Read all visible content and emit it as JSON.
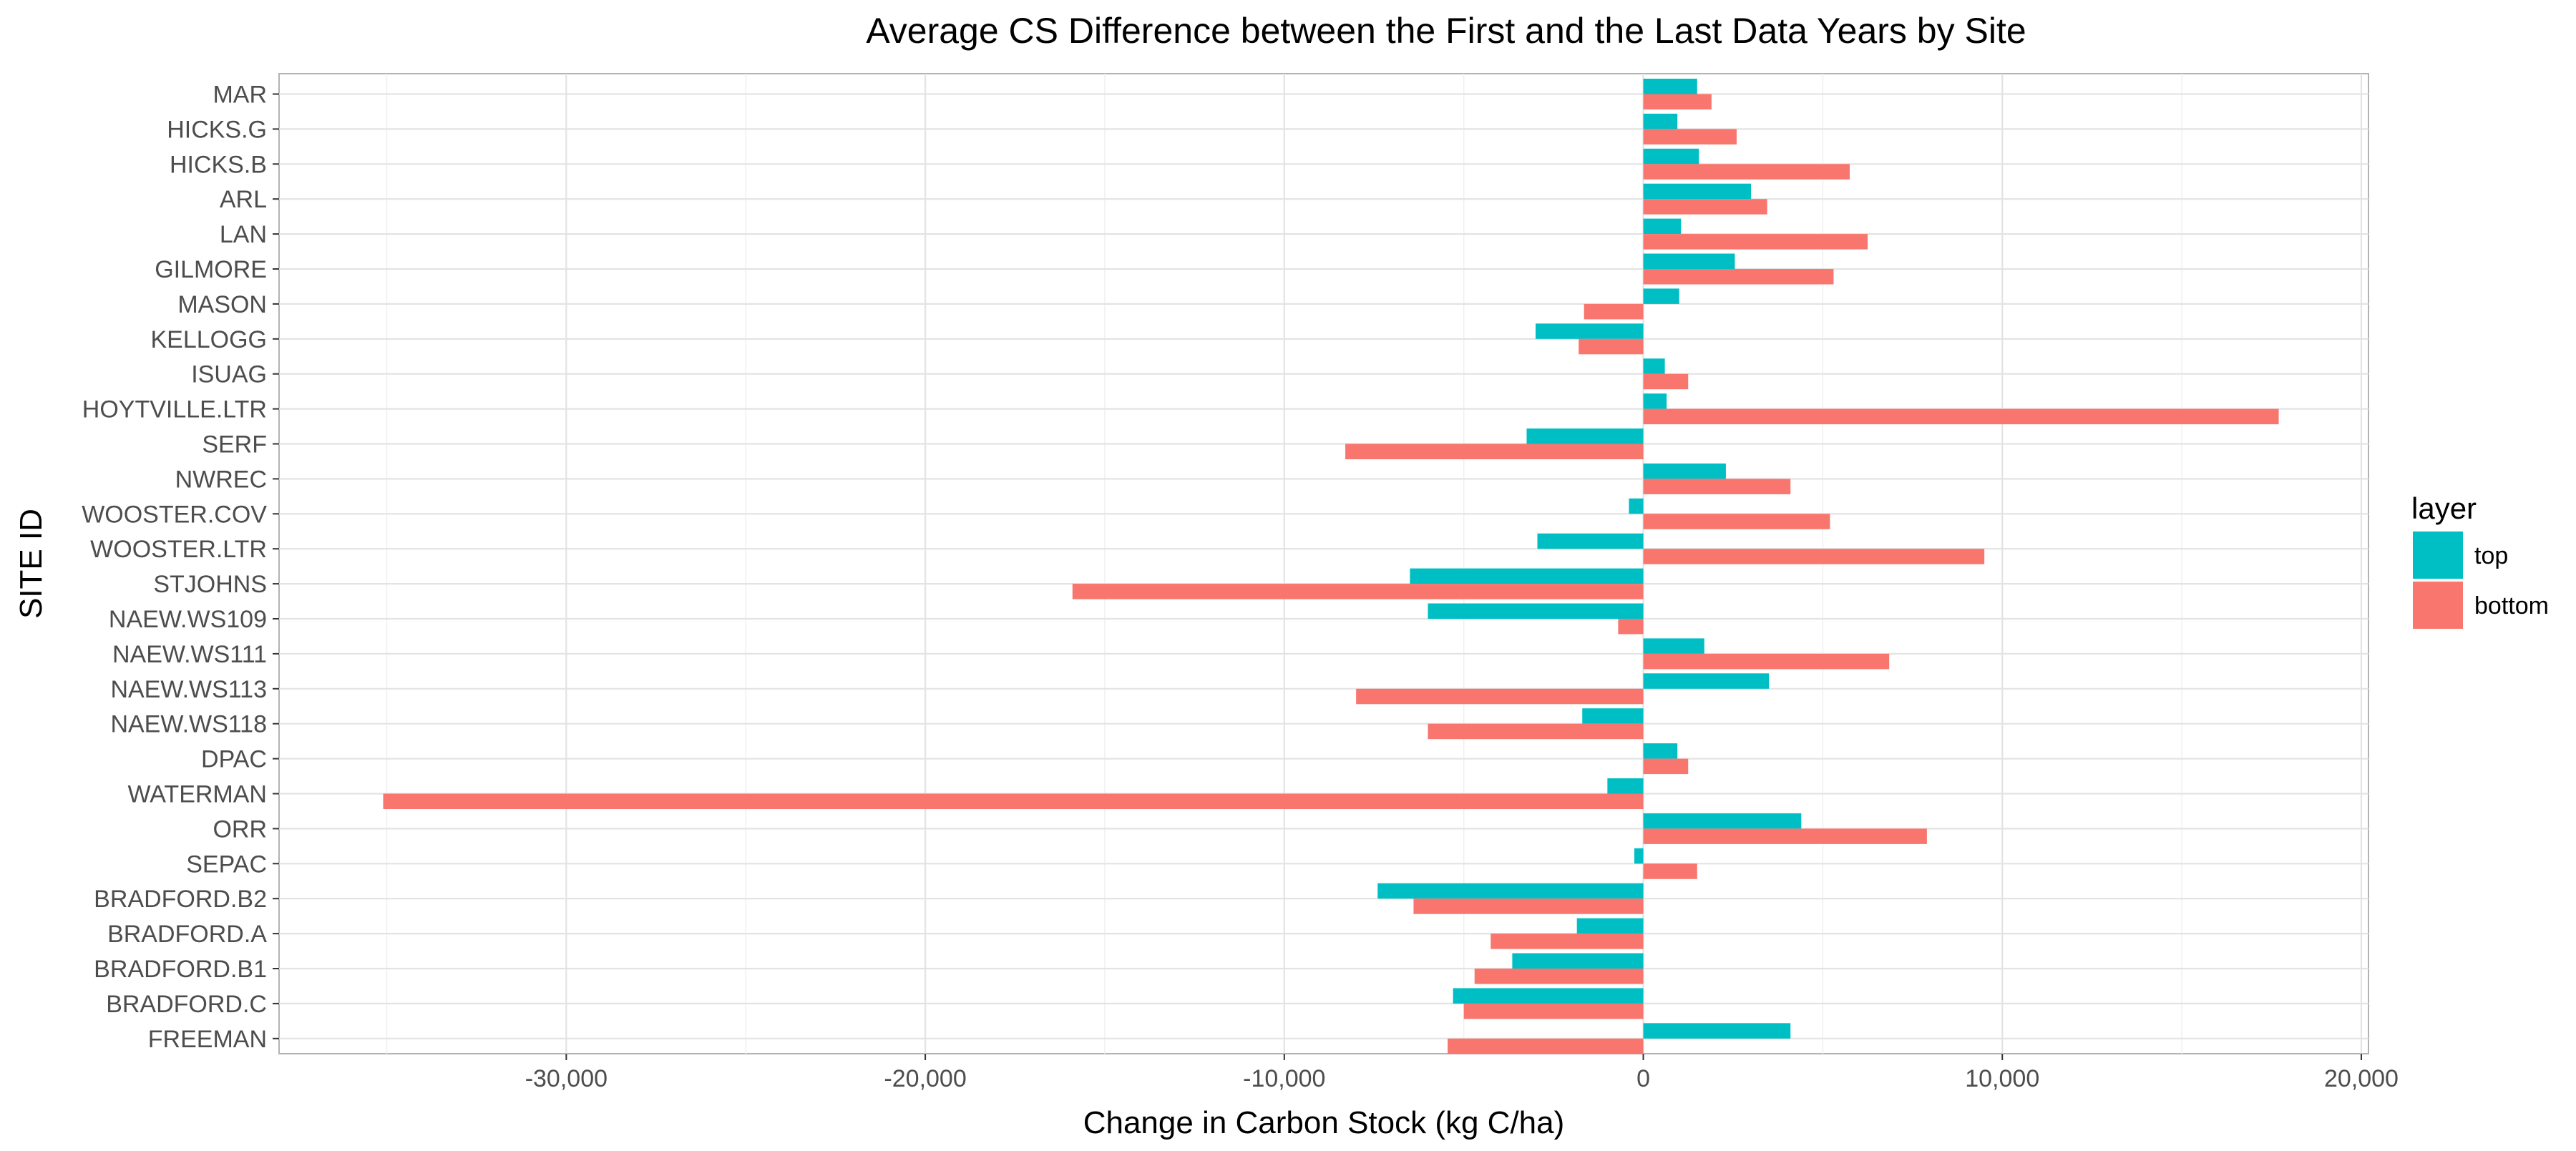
{
  "chart_data": {
    "type": "bar",
    "orientation": "horizontal",
    "title": "Average CS Difference between the First and the Last Data Years by Site",
    "xlabel": "Change in Carbon Stock (kg C/ha)",
    "ylabel": "SITE ID",
    "xlim": [
      -38000,
      20200
    ],
    "xticks": [
      -30000,
      -20000,
      -10000,
      0,
      10000,
      20000
    ],
    "xtick_labels": [
      "-30,000",
      "-20,000",
      "-10,000",
      "0",
      "10,000",
      "20,000"
    ],
    "grid": true,
    "legend_position": "right",
    "legend_title": "layer",
    "categories": [
      "MAR",
      "HICKS.G",
      "HICKS.B",
      "ARL",
      "LAN",
      "GILMORE",
      "MASON",
      "KELLOGG",
      "ISUAG",
      "HOYTVILLE.LTR",
      "SERF",
      "NWREC",
      "WOOSTER.COV",
      "WOOSTER.LTR",
      "STJOHNS",
      "NAEW.WS109",
      "NAEW.WS111",
      "NAEW.WS113",
      "NAEW.WS118",
      "DPAC",
      "WATERMAN",
      "ORR",
      "SEPAC",
      "BRADFORD.B2",
      "BRADFORD.A",
      "BRADFORD.B1",
      "BRADFORD.C",
      "FREEMAN"
    ],
    "series": [
      {
        "name": "top",
        "color": "#00BFC4",
        "values": [
          1500,
          950,
          1550,
          3000,
          1050,
          2550,
          1000,
          -3000,
          600,
          650,
          -3250,
          2300,
          -400,
          -2950,
          -6500,
          -6000,
          1700,
          3500,
          -1700,
          950,
          -1000,
          4400,
          -250,
          -7400,
          -1850,
          -3650,
          -5300,
          4100
        ]
      },
      {
        "name": "bottom",
        "color": "#F8766D",
        "values": [
          1900,
          2600,
          5750,
          3450,
          6250,
          5300,
          -1650,
          -1800,
          1250,
          17700,
          -8300,
          4100,
          5200,
          9500,
          -15900,
          -700,
          6850,
          -8000,
          -6000,
          1250,
          -35100,
          7900,
          1500,
          -6400,
          -4250,
          -4700,
          -5000,
          -5450
        ]
      }
    ]
  }
}
